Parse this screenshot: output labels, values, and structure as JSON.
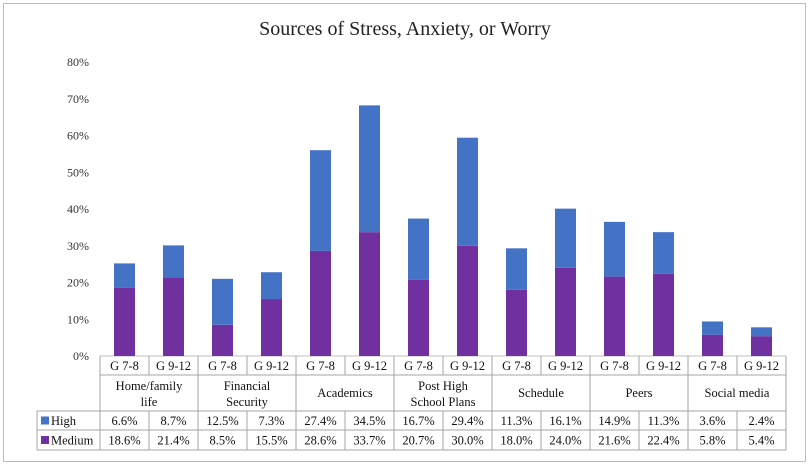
{
  "chart_data": {
    "type": "bar",
    "stacked": true,
    "title": "Sources of Stress, Anxiety, or Worry",
    "ylim": [
      0,
      80
    ],
    "y_ticks": [
      "0%",
      "10%",
      "20%",
      "30%",
      "40%",
      "50%",
      "60%",
      "70%",
      "80%"
    ],
    "groups": [
      {
        "label_lines": [
          "Home/family",
          "life"
        ]
      },
      {
        "label_lines": [
          "Financial",
          "Security"
        ]
      },
      {
        "label_lines": [
          "Academics"
        ]
      },
      {
        "label_lines": [
          "Post High",
          "School Plans"
        ]
      },
      {
        "label_lines": [
          "Schedule"
        ]
      },
      {
        "label_lines": [
          "Peers"
        ]
      },
      {
        "label_lines": [
          "Social media"
        ]
      }
    ],
    "categories": [
      "G 7-8",
      "G 9-12",
      "G 7-8",
      "G 9-12",
      "G 7-8",
      "G 9-12",
      "G 7-8",
      "G 9-12",
      "G 7-8",
      "G 9-12",
      "G 7-8",
      "G 9-12",
      "G 7-8",
      "G 9-12"
    ],
    "series": [
      {
        "name": "High",
        "color": "#4472c4",
        "values": [
          6.6,
          8.7,
          12.5,
          7.3,
          27.4,
          34.5,
          16.7,
          29.4,
          11.3,
          16.1,
          14.9,
          11.3,
          3.6,
          2.4
        ],
        "labels": [
          "6.6%",
          "8.7%",
          "12.5%",
          "7.3%",
          "27.4%",
          "34.5%",
          "16.7%",
          "29.4%",
          "11.3%",
          "16.1%",
          "14.9%",
          "11.3%",
          "3.6%",
          "2.4%"
        ]
      },
      {
        "name": "Medium",
        "color": "#7030a0",
        "values": [
          18.6,
          21.4,
          8.5,
          15.5,
          28.6,
          33.7,
          20.7,
          30.0,
          18.0,
          24.0,
          21.6,
          22.4,
          5.8,
          5.4
        ],
        "labels": [
          "18.6%",
          "21.4%",
          "8.5%",
          "15.5%",
          "28.6%",
          "33.7%",
          "20.7%",
          "30.0%",
          "18.0%",
          "24.0%",
          "21.6%",
          "22.4%",
          "5.8%",
          "5.4%"
        ]
      }
    ],
    "grid": false,
    "data_table": true
  }
}
